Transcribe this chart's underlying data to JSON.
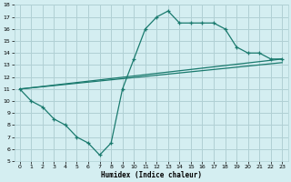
{
  "xlabel": "Humidex (Indice chaleur)",
  "bg_color": "#d4eef1",
  "line_color": "#1a7a6e",
  "grid_color": "#b0d0d4",
  "xlim": [
    -0.5,
    23.5
  ],
  "ylim": [
    5,
    18
  ],
  "xticks": [
    0,
    1,
    2,
    3,
    4,
    5,
    6,
    7,
    8,
    9,
    10,
    11,
    12,
    13,
    14,
    15,
    16,
    17,
    18,
    19,
    20,
    21,
    22,
    23
  ],
  "yticks": [
    5,
    6,
    7,
    8,
    9,
    10,
    11,
    12,
    13,
    14,
    15,
    16,
    17,
    18
  ],
  "line1_x": [
    0,
    1,
    2,
    3,
    4,
    5,
    6,
    7,
    8,
    9,
    10,
    11,
    12,
    13,
    14,
    15,
    16,
    17,
    18,
    19,
    20,
    21,
    22,
    23
  ],
  "line1_y": [
    11,
    10,
    9.5,
    8.5,
    8,
    7,
    6.5,
    5.5,
    6.5,
    11,
    13.5,
    16,
    17,
    17.5,
    16.5,
    16.5,
    16.5,
    16.5,
    16,
    14.5,
    14,
    14,
    13.5,
    13.5
  ],
  "line2_x": [
    0,
    23
  ],
  "line2_y": [
    11,
    13.5
  ],
  "line3_x": [
    0,
    23
  ],
  "line3_y": [
    11,
    13.2
  ]
}
